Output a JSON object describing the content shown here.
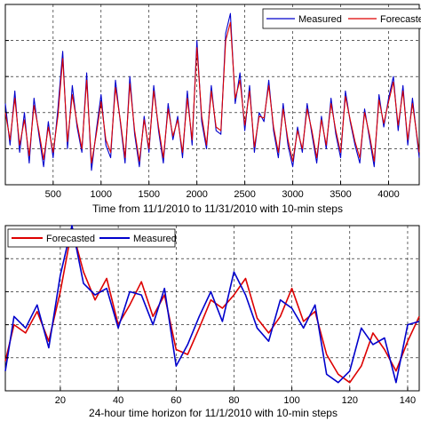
{
  "chart_data": [
    {
      "type": "line",
      "title": "",
      "xlabel": "Time from 11/1/2010 to 11/31/2010 with 10-min steps",
      "ylabel": "",
      "xlim": [
        1,
        4320
      ],
      "ylim": [
        0,
        1
      ],
      "xticks": [
        500,
        1000,
        1500,
        2000,
        2500,
        3000,
        3500,
        4000
      ],
      "grid": true,
      "legend_position": "top-right",
      "series": [
        {
          "name": "Measured",
          "color": "#0000cc",
          "x": [
            1,
            50,
            100,
            150,
            200,
            250,
            300,
            350,
            400,
            450,
            500,
            550,
            600,
            650,
            700,
            750,
            800,
            850,
            900,
            950,
            1000,
            1050,
            1100,
            1150,
            1200,
            1250,
            1300,
            1350,
            1400,
            1450,
            1500,
            1550,
            1600,
            1650,
            1700,
            1750,
            1800,
            1850,
            1900,
            1950,
            2000,
            2050,
            2100,
            2150,
            2200,
            2250,
            2300,
            2350,
            2400,
            2450,
            2500,
            2550,
            2600,
            2650,
            2700,
            2750,
            2800,
            2850,
            2900,
            2950,
            3000,
            3050,
            3100,
            3150,
            3200,
            3250,
            3300,
            3350,
            3400,
            3450,
            3500,
            3550,
            3600,
            3650,
            3700,
            3750,
            3800,
            3850,
            3900,
            3950,
            4000,
            4050,
            4100,
            4150,
            4200,
            4250,
            4320
          ],
          "y": [
            0.45,
            0.22,
            0.52,
            0.18,
            0.4,
            0.12,
            0.48,
            0.28,
            0.1,
            0.35,
            0.15,
            0.42,
            0.74,
            0.2,
            0.55,
            0.32,
            0.18,
            0.62,
            0.08,
            0.3,
            0.5,
            0.22,
            0.15,
            0.58,
            0.35,
            0.12,
            0.6,
            0.28,
            0.1,
            0.38,
            0.18,
            0.55,
            0.3,
            0.12,
            0.45,
            0.25,
            0.38,
            0.15,
            0.52,
            0.22,
            0.8,
            0.35,
            0.2,
            0.55,
            0.3,
            0.28,
            0.84,
            0.95,
            0.45,
            0.62,
            0.3,
            0.55,
            0.18,
            0.4,
            0.35,
            0.58,
            0.3,
            0.15,
            0.45,
            0.22,
            0.1,
            0.32,
            0.18,
            0.45,
            0.28,
            0.12,
            0.38,
            0.2,
            0.48,
            0.28,
            0.15,
            0.52,
            0.35,
            0.22,
            0.12,
            0.42,
            0.26,
            0.1,
            0.5,
            0.32,
            0.48,
            0.6,
            0.3,
            0.55,
            0.22,
            0.48,
            0.15
          ]
        },
        {
          "name": "Forecasted",
          "color": "#dd0000",
          "x": [
            1,
            50,
            100,
            150,
            200,
            250,
            300,
            350,
            400,
            450,
            500,
            550,
            600,
            650,
            700,
            750,
            800,
            850,
            900,
            950,
            1000,
            1050,
            1100,
            1150,
            1200,
            1250,
            1300,
            1350,
            1400,
            1450,
            1500,
            1550,
            1600,
            1650,
            1700,
            1750,
            1800,
            1850,
            1900,
            1950,
            2000,
            2050,
            2100,
            2150,
            2200,
            2250,
            2300,
            2350,
            2400,
            2450,
            2500,
            2550,
            2600,
            2650,
            2700,
            2750,
            2800,
            2850,
            2900,
            2950,
            3000,
            3050,
            3100,
            3150,
            3200,
            3250,
            3300,
            3350,
            3400,
            3450,
            3500,
            3550,
            3600,
            3650,
            3700,
            3750,
            3800,
            3850,
            3900,
            3950,
            4000,
            4050,
            4100,
            4150,
            4200,
            4250,
            4320
          ],
          "y": [
            0.4,
            0.25,
            0.48,
            0.22,
            0.36,
            0.16,
            0.44,
            0.3,
            0.14,
            0.32,
            0.18,
            0.38,
            0.7,
            0.24,
            0.5,
            0.34,
            0.2,
            0.58,
            0.12,
            0.28,
            0.46,
            0.25,
            0.18,
            0.54,
            0.36,
            0.15,
            0.56,
            0.3,
            0.13,
            0.36,
            0.2,
            0.52,
            0.32,
            0.15,
            0.42,
            0.27,
            0.36,
            0.18,
            0.48,
            0.25,
            0.76,
            0.38,
            0.22,
            0.52,
            0.32,
            0.3,
            0.8,
            0.9,
            0.48,
            0.58,
            0.33,
            0.52,
            0.21,
            0.38,
            0.37,
            0.55,
            0.32,
            0.18,
            0.42,
            0.25,
            0.13,
            0.3,
            0.2,
            0.42,
            0.3,
            0.15,
            0.36,
            0.22,
            0.45,
            0.3,
            0.18,
            0.49,
            0.36,
            0.24,
            0.15,
            0.4,
            0.28,
            0.13,
            0.47,
            0.34,
            0.46,
            0.57,
            0.33,
            0.52,
            0.25,
            0.45,
            0.18
          ]
        }
      ]
    },
    {
      "type": "line",
      "title": "",
      "xlabel": "24-hour time horizon for 11/1/2010 with 10-min steps",
      "ylabel": "",
      "xlim": [
        1,
        144
      ],
      "ylim": [
        0,
        1
      ],
      "xticks": [
        20,
        40,
        60,
        80,
        100,
        120,
        140
      ],
      "grid": true,
      "legend_position": "top-left",
      "series": [
        {
          "name": "Forecasted",
          "color": "#dd0000",
          "x": [
            1,
            4,
            8,
            12,
            16,
            20,
            24,
            28,
            32,
            36,
            40,
            44,
            48,
            52,
            56,
            60,
            64,
            68,
            72,
            76,
            80,
            84,
            88,
            92,
            96,
            100,
            104,
            108,
            112,
            116,
            120,
            124,
            128,
            132,
            136,
            140,
            144
          ],
          "y": [
            0.18,
            0.4,
            0.35,
            0.48,
            0.3,
            0.6,
            0.98,
            0.72,
            0.55,
            0.68,
            0.4,
            0.52,
            0.66,
            0.45,
            0.58,
            0.25,
            0.22,
            0.38,
            0.55,
            0.5,
            0.58,
            0.68,
            0.44,
            0.35,
            0.45,
            0.62,
            0.42,
            0.48,
            0.22,
            0.1,
            0.05,
            0.15,
            0.35,
            0.25,
            0.12,
            0.3,
            0.45
          ]
        },
        {
          "name": "Measured",
          "color": "#0000cc",
          "x": [
            1,
            4,
            8,
            12,
            16,
            20,
            24,
            28,
            32,
            36,
            40,
            44,
            48,
            52,
            56,
            60,
            64,
            68,
            72,
            76,
            80,
            84,
            88,
            92,
            96,
            100,
            104,
            108,
            112,
            116,
            120,
            124,
            128,
            132,
            136,
            140,
            144
          ],
          "y": [
            0.12,
            0.45,
            0.38,
            0.52,
            0.26,
            0.7,
            1.0,
            0.65,
            0.58,
            0.62,
            0.38,
            0.6,
            0.58,
            0.4,
            0.62,
            0.15,
            0.28,
            0.45,
            0.6,
            0.42,
            0.72,
            0.58,
            0.38,
            0.3,
            0.55,
            0.5,
            0.38,
            0.52,
            0.1,
            0.05,
            0.12,
            0.38,
            0.28,
            0.32,
            0.05,
            0.4,
            0.42
          ]
        }
      ]
    }
  ]
}
